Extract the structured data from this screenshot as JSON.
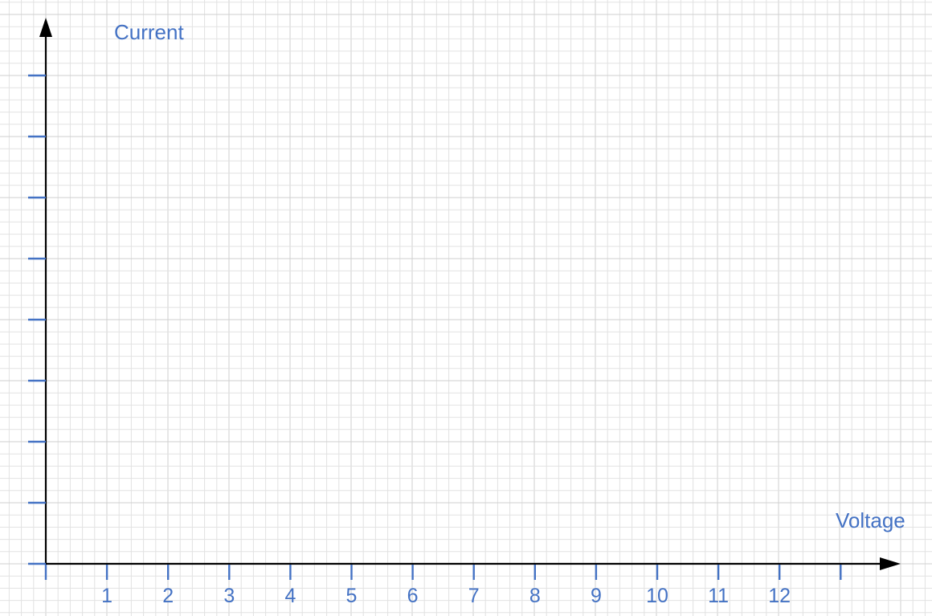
{
  "chart_data": {
    "type": "line",
    "title": "",
    "xlabel": "Voltage",
    "ylabel": "Current",
    "x_ticks": [
      "1",
      "2",
      "3",
      "4",
      "5",
      "6",
      "7",
      "8",
      "9",
      "10",
      "11",
      "12"
    ],
    "xlim": [
      0,
      13
    ],
    "y_tick_count": 8,
    "y_tick_labels": [],
    "series": [],
    "grid": true,
    "legend": "none"
  },
  "colors": {
    "grid_minor": "#e2e2e2",
    "grid_major": "#cfcfcf",
    "axis": "#000000",
    "tick": "#4472c4",
    "label": "#4472c4"
  }
}
